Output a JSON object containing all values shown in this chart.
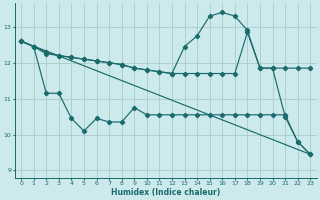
{
  "xlabel": "Humidex (Indice chaleur)",
  "bg_color": "#cce9ec",
  "grid_color": "#aacccc",
  "line_color": "#1a6b6b",
  "xlim": [
    -0.5,
    23.5
  ],
  "ylim": [
    8.8,
    13.65
  ],
  "yticks": [
    9,
    10,
    11,
    12,
    13
  ],
  "xticks": [
    0,
    1,
    2,
    3,
    4,
    5,
    6,
    7,
    8,
    9,
    10,
    11,
    12,
    13,
    14,
    15,
    16,
    17,
    18,
    19,
    20,
    21,
    22,
    23
  ],
  "line1_x": [
    0,
    1,
    2,
    3,
    4,
    5,
    6,
    7,
    8,
    9,
    10,
    11,
    12,
    13,
    14,
    15,
    16,
    17,
    18,
    19,
    20,
    21,
    22,
    23
  ],
  "line1_y": [
    12.6,
    12.45,
    12.25,
    12.2,
    12.15,
    12.1,
    12.05,
    12.0,
    11.95,
    11.85,
    11.8,
    11.75,
    11.7,
    12.45,
    12.75,
    13.3,
    13.4,
    13.3,
    12.9,
    11.85,
    11.85,
    10.5,
    9.8,
    9.45
  ],
  "line2_x": [
    0,
    1,
    2,
    3,
    4,
    5,
    6,
    7,
    8,
    9,
    10,
    11,
    12,
    13,
    14,
    15,
    16,
    17,
    18,
    19,
    20,
    21,
    22,
    23
  ],
  "line2_y": [
    12.6,
    12.45,
    12.3,
    12.2,
    12.15,
    12.1,
    12.05,
    12.0,
    11.95,
    11.85,
    11.8,
    11.75,
    11.7,
    11.7,
    11.7,
    11.7,
    11.7,
    11.7,
    12.85,
    11.85,
    11.85,
    11.85,
    11.85,
    11.85
  ],
  "line3_x": [
    0,
    1,
    2,
    3,
    4,
    5,
    6,
    7,
    8,
    9,
    10,
    11,
    12,
    13,
    14,
    15,
    16,
    17,
    18,
    19,
    20,
    21,
    22,
    23
  ],
  "line3_y": [
    12.6,
    12.45,
    11.15,
    11.15,
    10.45,
    10.1,
    10.45,
    10.35,
    10.35,
    10.75,
    10.55,
    10.55,
    10.55,
    10.55,
    10.55,
    10.55,
    10.55,
    10.55,
    10.55,
    10.55,
    10.55,
    10.55,
    9.8,
    9.45
  ],
  "line4_x": [
    0,
    23
  ],
  "line4_y": [
    12.6,
    9.45
  ]
}
